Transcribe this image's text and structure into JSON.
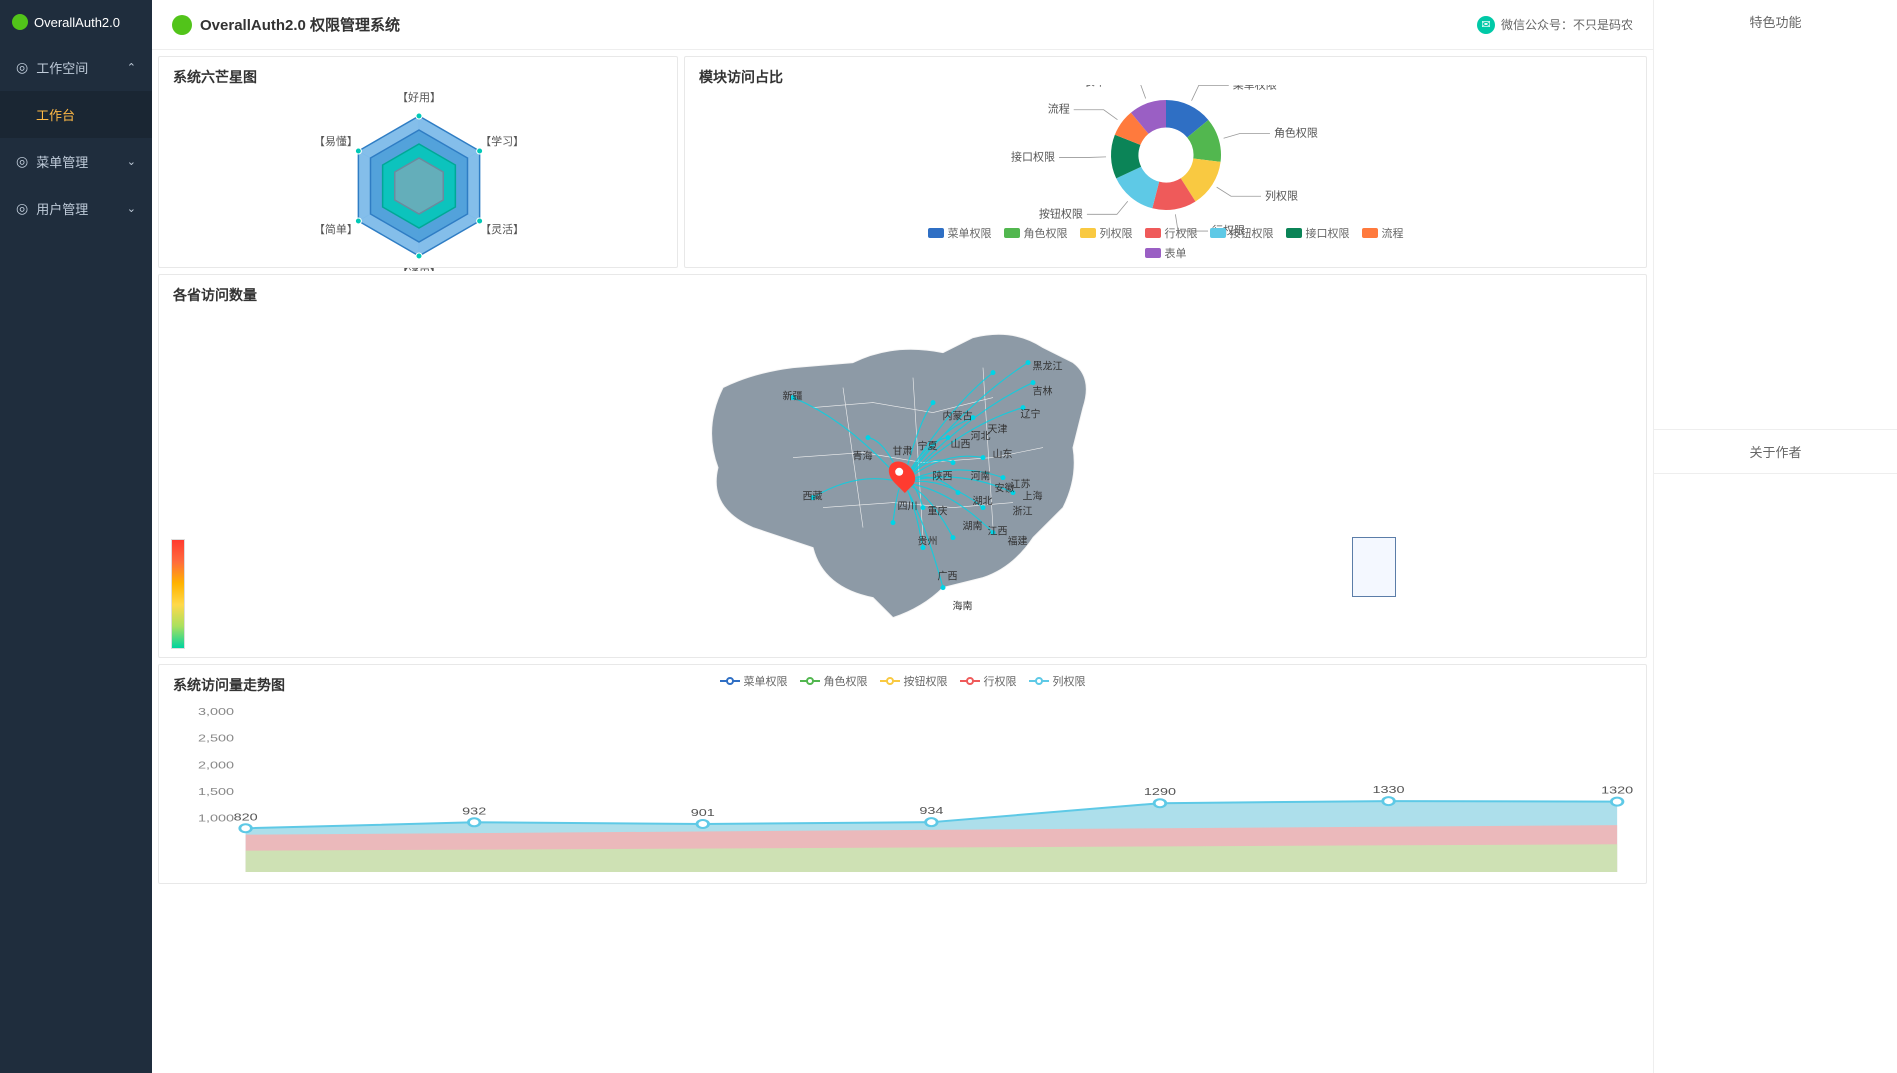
{
  "app": {
    "sidebar_title": "OverallAuth2.0",
    "topbar_title": "OverallAuth2.0 权限管理系统"
  },
  "sidebar": {
    "items": [
      {
        "icon": "◎",
        "label": "工作空间",
        "expanded": true,
        "children": [
          {
            "label": "工作台",
            "active": true
          }
        ]
      },
      {
        "icon": "◎",
        "label": "菜单管理",
        "expanded": false
      },
      {
        "icon": "◎",
        "label": "用户管理",
        "expanded": false
      }
    ]
  },
  "topbar": {
    "wechat_text": "微信公众号：不只是码农"
  },
  "right_panel": {
    "section1_title": "特色功能",
    "section2_title": "关于作者"
  },
  "radar_chart": {
    "title": "系统六芒星图",
    "axes": [
      "【好用】",
      "【学习】",
      "【灵活】",
      "【通用】",
      "【简单】",
      "【易懂】"
    ],
    "rings": [
      {
        "r": 1.0,
        "fill": "#6eb3e6",
        "stroke": "#2f7dc4",
        "opacity": 0.85
      },
      {
        "r": 0.8,
        "fill": "#4a9ed8",
        "stroke": "#2f7dc4",
        "opacity": 0.85
      },
      {
        "r": 0.6,
        "fill": "#00c9b7",
        "stroke": "#00a896",
        "opacity": 0.85
      },
      {
        "r": 0.4,
        "fill": "#8aa5b9",
        "stroke": "#6b8a9e",
        "opacity": 0.7
      }
    ],
    "grid_color": "#d4e6f4",
    "label_color": "#4a9ed8",
    "point_color": "#00c9b7"
  },
  "donut_chart": {
    "title": "模块访问占比",
    "segments": [
      {
        "label": "菜单权限",
        "value": 14,
        "color": "#2f6fc4"
      },
      {
        "label": "角色权限",
        "value": 13,
        "color": "#52b74f"
      },
      {
        "label": "列权限",
        "value": 14,
        "color": "#f9c941"
      },
      {
        "label": "行权限",
        "value": 13,
        "color": "#ef5a5a"
      },
      {
        "label": "按钮权限",
        "value": 14,
        "color": "#5ec9e6"
      },
      {
        "label": "接口权限",
        "value": 13,
        "color": "#0b8457"
      },
      {
        "label": "流程",
        "value": 8,
        "color": "#ff7a3d"
      },
      {
        "label": "表单",
        "value": 11,
        "color": "#9a5fc4"
      }
    ],
    "inner_radius": 0.5,
    "legend_labels": [
      "菜单权限",
      "角色权限",
      "列权限",
      "行权限",
      "按钮权限",
      "接口权限",
      "流程",
      "表单"
    ]
  },
  "map_chart": {
    "title": "各省访问数量",
    "base_color": "#8d9aa6",
    "line_color": "#00d4e6",
    "provinces": [
      "新疆",
      "西藏",
      "青海",
      "甘肃",
      "宁夏",
      "内蒙古",
      "黑龙江",
      "吉林",
      "辽宁",
      "山西",
      "河北",
      "天津",
      "山东",
      "陕西",
      "河南",
      "安徽",
      "江苏",
      "上海",
      "湖北",
      "浙江",
      "四川",
      "重庆",
      "贵州",
      "湖南",
      "江西",
      "福建",
      "广西",
      "海南"
    ]
  },
  "trend_chart": {
    "title": "系统访问量走势图",
    "series": [
      {
        "name": "菜单权限",
        "color": "#2f6fc4"
      },
      {
        "name": "角色权限",
        "color": "#52b74f"
      },
      {
        "name": "按钮权限",
        "color": "#f9c941"
      },
      {
        "name": "行权限",
        "color": "#ef5a5a"
      },
      {
        "name": "列权限",
        "color": "#5ec9e6"
      }
    ],
    "x_count": 7,
    "ylim": [
      0,
      3000
    ],
    "ytick_step": 500,
    "yticks": [
      "1,000",
      "1,500",
      "2,000",
      "2,500",
      "3,000"
    ],
    "area_top": {
      "color": "#9fd9e8",
      "values": [
        820,
        932,
        901,
        934,
        1290,
        1330,
        1320
      ]
    },
    "area_mid": {
      "color": "#f6b3b3",
      "base": 700
    },
    "area_low": {
      "color": "#c9e8b3",
      "base": 400
    },
    "label_fontsize": 10,
    "value_labels": [
      "820",
      "932",
      "901",
      "934",
      "1290",
      "1330",
      "1320"
    ]
  }
}
